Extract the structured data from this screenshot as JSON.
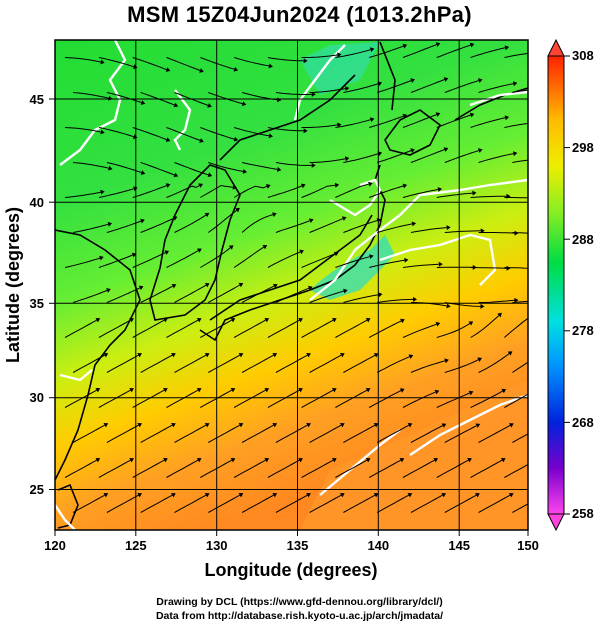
{
  "title": "MSM 15Z04Jun2024 (1013.2hPa)",
  "xaxis": {
    "label": "Longitude (degrees)",
    "ticks": [
      "120",
      "125",
      "130",
      "135",
      "140",
      "145",
      "150"
    ],
    "range": [
      120,
      150
    ]
  },
  "yaxis": {
    "label": "Latitude  (degrees)",
    "ticks": [
      "25",
      "30",
      "35",
      "40",
      "45"
    ],
    "range": [
      22.4,
      47.6
    ]
  },
  "colorbar": {
    "labels": [
      "308",
      "298",
      "288",
      "278",
      "268",
      "258"
    ],
    "range": [
      258,
      308
    ],
    "colors": [
      "#ff44ee",
      "#6600cc",
      "#0022dd",
      "#0099ff",
      "#00e0e0",
      "#00dd44",
      "#66ee22",
      "#ddee00",
      "#ffcc00",
      "#ff8800",
      "#ff2200"
    ]
  },
  "credits": {
    "line1": "Drawing by DCL (https://www.gfd-dennou.org/library/dcl/)",
    "line2": "Data from http://database.rish.kyoto-u.ac.jp/arch/jmadata/"
  },
  "colors": {
    "land_green": "#22dd22",
    "sea_north": "#33ee55",
    "sea_south": "#ff9922",
    "contour": "#ffffff",
    "coast": "#000000"
  }
}
